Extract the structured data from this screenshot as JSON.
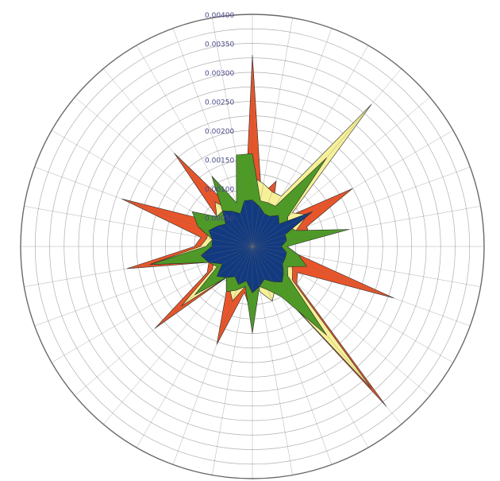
{
  "chart_data": {
    "type": "radar",
    "title": "",
    "axis_count": 36,
    "radial_ticks": [
      "0.00050",
      "0.00100",
      "0.00150",
      "0.00200",
      "0.00250",
      "0.00300",
      "0.00350",
      "0.00400"
    ],
    "rmax": 0.004,
    "grid": true,
    "series": [
      {
        "color": "#e8552a",
        "values": [
          0.0033,
          0.0009,
          0.0012,
          0.0007,
          0.0028,
          0.0008,
          0.002,
          0.001,
          0.001,
          0.0006,
          0.0008,
          0.0026,
          0.0009,
          0.001,
          0.0036,
          0.0008,
          0.001,
          0.0007,
          0.0012,
          0.0008,
          0.0018,
          0.0009,
          0.0007,
          0.0022,
          0.0009,
          0.0008,
          0.0022,
          0.001,
          0.0009,
          0.0024,
          0.0009,
          0.0008,
          0.0021,
          0.0008,
          0.0007,
          0.0007
        ]
      },
      {
        "color": "#f6f098",
        "values": [
          0.0012,
          0.0011,
          0.001,
          0.001,
          0.0032,
          0.0009,
          0.0011,
          0.0008,
          0.0008,
          0.0006,
          0.0007,
          0.0007,
          0.0008,
          0.0009,
          0.0032,
          0.0008,
          0.001,
          0.0008,
          0.0006,
          0.0007,
          0.001,
          0.0008,
          0.0007,
          0.0016,
          0.0008,
          0.0007,
          0.0018,
          0.0009,
          0.0008,
          0.0008,
          0.0008,
          0.0008,
          0.001,
          0.0007,
          0.0007,
          0.0006
        ]
      },
      {
        "color": "#4e9a26",
        "values": [
          0.0016,
          0.0008,
          0.0008,
          0.0008,
          0.002,
          0.0008,
          0.0007,
          0.0008,
          0.0017,
          0.0006,
          0.0008,
          0.001,
          0.0007,
          0.0008,
          0.002,
          0.001,
          0.0008,
          0.0007,
          0.0015,
          0.0007,
          0.0008,
          0.0009,
          0.0007,
          0.0013,
          0.0007,
          0.0008,
          0.0018,
          0.0008,
          0.0007,
          0.001,
          0.0012,
          0.0008,
          0.0008,
          0.0014,
          0.0008,
          0.0016
        ]
      },
      {
        "color": "#123a80",
        "values": [
          0.0008,
          0.0007,
          0.0006,
          0.0006,
          0.0007,
          0.0006,
          0.0012,
          0.0006,
          0.0006,
          0.0005,
          0.0006,
          0.0006,
          0.0006,
          0.0007,
          0.0008,
          0.0007,
          0.0006,
          0.0007,
          0.0008,
          0.0006,
          0.0007,
          0.0006,
          0.0007,
          0.0008,
          0.0006,
          0.0008,
          0.0009,
          0.0007,
          0.0007,
          0.0008,
          0.0007,
          0.0006,
          0.0008,
          0.0007,
          0.0006,
          0.0008
        ]
      }
    ]
  }
}
